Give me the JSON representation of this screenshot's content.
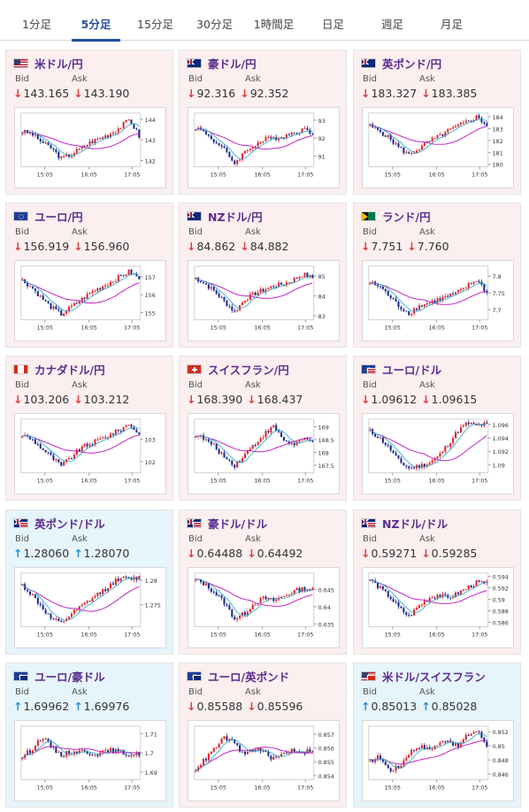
{
  "tabs": [
    {
      "label": "1分足"
    },
    {
      "label": "5分足",
      "active": true
    },
    {
      "label": "15分足"
    },
    {
      "label": "30分足"
    },
    {
      "label": "1時間足"
    },
    {
      "label": "日足"
    },
    {
      "label": "週足"
    },
    {
      "label": "月足"
    }
  ],
  "bid_label": "Bid",
  "ask_label": "Ask",
  "x_ticks": [
    "15:05",
    "16:05",
    "17:05"
  ],
  "colors": {
    "up": "#e0242b",
    "down": "#1a2a8c",
    "ma": "#c020c0",
    "ma2": "#20a0c0",
    "pink_bg": "#fcefef",
    "blue_bg": "#e6f4fb"
  },
  "cards": [
    {
      "pair": "米ドル/円",
      "flag": "us-flag",
      "bid": "143.165",
      "ask": "143.190",
      "dir": "down",
      "bg": "pink",
      "chart_data": {
        "type": "candlestick",
        "y_ticks": [
          "144",
          "143",
          "142"
        ],
        "ylim": [
          141.7,
          144.3
        ],
        "trend": [
          143.4,
          143.3,
          142.9,
          142.6,
          142.1,
          142.3,
          142.6,
          142.9,
          143.1,
          143.3,
          143.6,
          144.0,
          143.2
        ]
      }
    },
    {
      "pair": "豪ドル/円",
      "flag": "au-flag",
      "bid": "92.316",
      "ask": "92.352",
      "dir": "down",
      "bg": "pink",
      "chart_data": {
        "type": "candlestick",
        "y_ticks": [
          "93",
          "92",
          "91"
        ],
        "ylim": [
          90.4,
          93.4
        ],
        "trend": [
          92.6,
          92.3,
          91.8,
          91.3,
          90.6,
          91.2,
          91.6,
          91.9,
          92.0,
          92.1,
          92.3,
          92.5,
          92.3
        ]
      }
    },
    {
      "pair": "英ポンド/円",
      "flag": "uk-flag",
      "bid": "183.327",
      "ask": "183.385",
      "dir": "down",
      "bg": "pink",
      "chart_data": {
        "type": "candlestick",
        "y_ticks": [
          "184",
          "183",
          "182",
          "181",
          "180"
        ],
        "ylim": [
          179.8,
          184.3
        ],
        "trend": [
          183.2,
          182.8,
          182.2,
          181.4,
          180.8,
          181.3,
          181.9,
          182.3,
          182.8,
          183.2,
          183.6,
          184.0,
          183.3
        ]
      }
    },
    {
      "pair": "ユーロ/円",
      "flag": "eu-flag",
      "bid": "156.919",
      "ask": "156.960",
      "dir": "down",
      "bg": "pink",
      "chart_data": {
        "type": "candlestick",
        "y_ticks": [
          "157",
          "156",
          "155"
        ],
        "ylim": [
          154.6,
          157.6
        ],
        "trend": [
          156.8,
          156.4,
          155.8,
          155.3,
          154.9,
          155.3,
          155.7,
          156.1,
          156.4,
          156.7,
          157.0,
          157.3,
          156.9
        ]
      }
    },
    {
      "pair": "NZドル/円",
      "flag": "nz-flag",
      "bid": "84.862",
      "ask": "84.882",
      "dir": "down",
      "bg": "pink",
      "chart_data": {
        "type": "candlestick",
        "y_ticks": [
          "85",
          "84",
          "83"
        ],
        "ylim": [
          82.8,
          85.5
        ],
        "trend": [
          84.9,
          84.6,
          84.2,
          83.7,
          83.2,
          83.8,
          84.1,
          84.3,
          84.5,
          84.6,
          84.8,
          85.1,
          84.9
        ]
      }
    },
    {
      "pair": "ランド/円",
      "flag": "za-flag",
      "bid": "7.751",
      "ask": "7.760",
      "dir": "down",
      "bg": "pink",
      "chart_data": {
        "type": "candlestick",
        "y_ticks": [
          "7.8",
          "7.75",
          "7.7"
        ],
        "ylim": [
          7.67,
          7.83
        ],
        "trend": [
          7.78,
          7.77,
          7.74,
          7.71,
          7.69,
          7.71,
          7.72,
          7.73,
          7.74,
          7.75,
          7.77,
          7.79,
          7.75
        ]
      }
    },
    {
      "pair": "カナダドル/円",
      "flag": "ca-flag",
      "bid": "103.206",
      "ask": "103.212",
      "dir": "down",
      "bg": "pink",
      "chart_data": {
        "type": "candlestick",
        "y_ticks": [
          "103",
          "102"
        ],
        "ylim": [
          101.5,
          103.9
        ],
        "trend": [
          103.2,
          103.0,
          102.6,
          102.2,
          101.8,
          102.2,
          102.6,
          102.8,
          103.0,
          103.2,
          103.4,
          103.7,
          103.2
        ]
      }
    },
    {
      "pair": "スイスフラン/円",
      "flag": "ch-flag",
      "bid": "168.390",
      "ask": "168.437",
      "dir": "down",
      "bg": "pink",
      "chart_data": {
        "type": "candlestick",
        "y_ticks": [
          "169",
          "168.5",
          "168",
          "167.5"
        ],
        "ylim": [
          167.2,
          169.3
        ],
        "trend": [
          168.7,
          168.5,
          168.2,
          167.8,
          167.5,
          167.9,
          168.3,
          168.7,
          169.0,
          168.5,
          168.3,
          168.5,
          168.4
        ]
      }
    },
    {
      "pair": "ユーロ/ドル",
      "flag": "eu-us-flag",
      "bid": "1.09612",
      "ask": "1.09615",
      "dir": "down",
      "bg": "pink",
      "chart_data": {
        "type": "candlestick",
        "y_ticks": [
          "1.096",
          "1.094",
          "1.092",
          "1.09"
        ],
        "ylim": [
          1.0888,
          1.0968
        ],
        "trend": [
          1.095,
          1.094,
          1.0925,
          1.0905,
          1.0895,
          1.0898,
          1.0902,
          1.0912,
          1.093,
          1.095,
          1.0962,
          1.0958,
          1.0961
        ]
      }
    },
    {
      "pair": "英ポンド/ドル",
      "flag": "uk-us-flag",
      "bid": "1.28060",
      "ask": "1.28070",
      "dir": "up",
      "bg": "blue",
      "chart_data": {
        "type": "candlestick",
        "y_ticks": [
          "1.28",
          "1.275"
        ],
        "ylim": [
          1.2705,
          1.2815
        ],
        "trend": [
          1.279,
          1.277,
          1.2745,
          1.272,
          1.2712,
          1.273,
          1.2745,
          1.276,
          1.2775,
          1.279,
          1.2805,
          1.2802,
          1.2806
        ]
      }
    },
    {
      "pair": "豪ドル/ドル",
      "flag": "au-us-flag",
      "bid": "0.64488",
      "ask": "0.64492",
      "dir": "down",
      "bg": "pink",
      "chart_data": {
        "type": "candlestick",
        "y_ticks": [
          "0.645",
          "0.64",
          "0.635"
        ],
        "ylim": [
          0.6342,
          0.6498
        ],
        "trend": [
          0.6478,
          0.6465,
          0.644,
          0.641,
          0.6365,
          0.638,
          0.641,
          0.6425,
          0.6418,
          0.643,
          0.6445,
          0.6452,
          0.6449
        ]
      }
    },
    {
      "pair": "NZドル/ドル",
      "flag": "nz-us-flag",
      "bid": "0.59271",
      "ask": "0.59285",
      "dir": "down",
      "bg": "pink",
      "chart_data": {
        "type": "candlestick",
        "y_ticks": [
          "0.594",
          "0.592",
          "0.59",
          "0.588",
          "0.586"
        ],
        "ylim": [
          0.5852,
          0.5946
        ],
        "trend": [
          0.5935,
          0.592,
          0.5905,
          0.5885,
          0.587,
          0.5888,
          0.5902,
          0.5908,
          0.5902,
          0.591,
          0.592,
          0.593,
          0.5927
        ]
      }
    },
    {
      "pair": "ユーロ/豪ドル",
      "flag": "eu-au-flag",
      "bid": "1.69962",
      "ask": "1.69976",
      "dir": "up",
      "bg": "blue",
      "chart_data": {
        "type": "candlestick",
        "y_ticks": [
          "1.71",
          "1.7",
          "1.69"
        ],
        "ylim": [
          1.686,
          1.714
        ],
        "trend": [
          1.698,
          1.702,
          1.7085,
          1.703,
          1.699,
          1.7005,
          1.701,
          1.7,
          1.6995,
          1.7015,
          1.7005,
          1.699,
          1.6996
        ]
      }
    },
    {
      "pair": "ユーロ/英ポンド",
      "flag": "eu-uk-flag",
      "bid": "0.85588",
      "ask": "0.85596",
      "dir": "down",
      "bg": "pink",
      "chart_data": {
        "type": "candlestick",
        "y_ticks": [
          "0.857",
          "0.856",
          "0.855",
          "0.854"
        ],
        "ylim": [
          0.8537,
          0.8576
        ],
        "trend": [
          0.8545,
          0.8552,
          0.856,
          0.8568,
          0.8563,
          0.8555,
          0.856,
          0.8557,
          0.8552,
          0.8556,
          0.8559,
          0.8557,
          0.8559
        ]
      }
    },
    {
      "pair": "米ドル/スイスフラン",
      "flag": "us-ch-flag",
      "bid": "0.85013",
      "ask": "0.85028",
      "dir": "up",
      "bg": "blue",
      "chart_data": {
        "type": "candlestick",
        "y_ticks": [
          "0.852",
          "0.85",
          "0.848",
          "0.846"
        ],
        "ylim": [
          0.8452,
          0.8528
        ],
        "trend": [
          0.8478,
          0.8485,
          0.8465,
          0.847,
          0.849,
          0.85,
          0.8495,
          0.8502,
          0.851,
          0.8498,
          0.8515,
          0.8522,
          0.8501
        ]
      }
    }
  ]
}
